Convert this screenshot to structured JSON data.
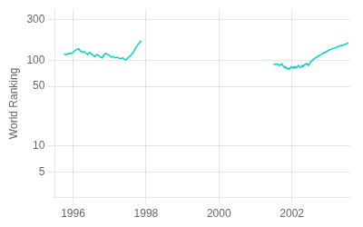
{
  "chart_data": {
    "type": "line",
    "ylabel": "World Ranking",
    "log": "y",
    "grid": true,
    "xlim": [
      1995.5,
      2003.6
    ],
    "xticks": [
      1996,
      1998,
      2000,
      2002
    ],
    "ylim": [
      2.5,
      400
    ],
    "yticks": [
      5,
      10,
      50,
      100,
      300
    ],
    "x": [
      1995.75,
      1995.82,
      1995.88,
      1995.95,
      1996.0,
      1996.05,
      1996.1,
      1996.15,
      1996.2,
      1996.25,
      1996.3,
      1996.35,
      1996.4,
      1996.45,
      1996.5,
      1996.55,
      1996.6,
      1996.65,
      1996.7,
      1996.75,
      1996.8,
      1996.85,
      1996.9,
      1996.95,
      1997.0,
      1997.05,
      1997.1,
      1997.15,
      1997.2,
      1997.25,
      1997.3,
      1997.35,
      1997.4,
      1997.45,
      1997.5,
      1997.55,
      1997.6,
      1997.65,
      1997.7,
      1997.75,
      1997.78,
      1997.82,
      1997.85,
      1997.88,
      2001.5,
      2001.55,
      2001.6,
      2001.65,
      2001.7,
      2001.72,
      2001.75,
      2001.78,
      2001.8,
      2001.83,
      2001.85,
      2001.88,
      2001.9,
      2001.93,
      2001.95,
      2001.98,
      2002.0,
      2002.03,
      2002.05,
      2002.08,
      2002.1,
      2002.13,
      2002.15,
      2002.18,
      2002.2,
      2002.23,
      2002.25,
      2002.28,
      2002.3,
      2002.33,
      2002.35,
      2002.38,
      2002.4,
      2002.43,
      2002.45,
      2002.48,
      2002.5,
      2002.55,
      2002.6,
      2002.65,
      2002.7,
      2002.75,
      2002.8,
      2002.85,
      2002.9,
      2002.95,
      2003.0,
      2003.05,
      2003.1,
      2003.15,
      2003.2,
      2003.25,
      2003.3,
      2003.35,
      2003.4,
      2003.45,
      2003.5,
      2003.52,
      2003.55
    ],
    "series": [
      {
        "color": "#00d4c8",
        "values": [
          120,
          118,
          122,
          121,
          125,
          132,
          135,
          138,
          130,
          125,
          128,
          122,
          118,
          125,
          120,
          115,
          112,
          118,
          115,
          110,
          108,
          118,
          122,
          118,
          115,
          110,
          112,
          108,
          110,
          108,
          105,
          108,
          105,
          102,
          108,
          112,
          118,
          125,
          138,
          148,
          155,
          162,
          168,
          170,
          null,
          null,
          null,
          null,
          null,
          null,
          null,
          null,
          null,
          null,
          null,
          null,
          null,
          null,
          null,
          null,
          null,
          null,
          null,
          null,
          null,
          null,
          null,
          null,
          null,
          null,
          null,
          null,
          null,
          null,
          null,
          null,
          null,
          null,
          null,
          null,
          null,
          null,
          null,
          null,
          null,
          null,
          null,
          null,
          null,
          null,
          null,
          null,
          null,
          null,
          null,
          null,
          null,
          null,
          null,
          null,
          null,
          null,
          null
        ]
      },
      {
        "color": "#00d4c8",
        "values": [
          null,
          null,
          null,
          null,
          null,
          null,
          null,
          null,
          null,
          null,
          null,
          null,
          null,
          null,
          null,
          null,
          null,
          null,
          null,
          null,
          null,
          null,
          null,
          null,
          null,
          null,
          null,
          null,
          null,
          null,
          null,
          null,
          null,
          null,
          null,
          null,
          null,
          null,
          null,
          null,
          null,
          null,
          null,
          null,
          92,
          90,
          92,
          88,
          90,
          92,
          88,
          85,
          82,
          85,
          82,
          80,
          82,
          80,
          82,
          85,
          83,
          82,
          85,
          82,
          85,
          83,
          85,
          88,
          85,
          83,
          85,
          88,
          85,
          88,
          90,
          92,
          90,
          92,
          88,
          90,
          95,
          100,
          105,
          108,
          112,
          115,
          118,
          122,
          125,
          128,
          132,
          135,
          138,
          140,
          142,
          145,
          148,
          150,
          152,
          155,
          158,
          160,
          162
        ]
      }
    ]
  }
}
